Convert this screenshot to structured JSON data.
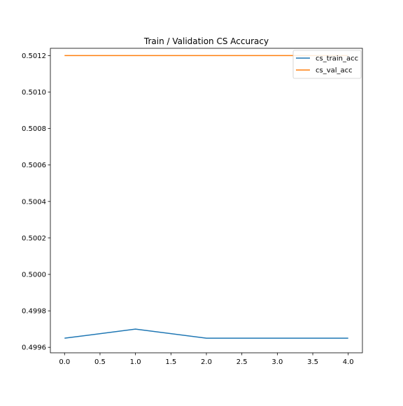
{
  "chart_data": {
    "type": "line",
    "title": "Train / Validation CS Accuracy",
    "xlabel": "",
    "ylabel": "",
    "x": [
      0,
      1,
      2,
      3,
      4
    ],
    "xlim": [
      -0.2,
      4.2
    ],
    "ylim": [
      0.49957,
      0.50124
    ],
    "xticks": [
      "0.0",
      "0.5",
      "1.0",
      "1.5",
      "2.0",
      "2.5",
      "3.0",
      "3.5",
      "4.0"
    ],
    "yticks": [
      "0.4996",
      "0.4998",
      "0.5000",
      "0.5002",
      "0.5004",
      "0.5006",
      "0.5008",
      "0.5010",
      "0.5012"
    ],
    "grid": false,
    "legend_position": "top-right",
    "series": [
      {
        "name": "cs_train_acc",
        "color": "#1f77b4",
        "values": [
          0.49965,
          0.4997,
          0.49965,
          0.49965,
          0.49965
        ]
      },
      {
        "name": "cs_val_acc",
        "color": "#ff7f0e",
        "values": [
          0.5012,
          0.5012,
          0.5012,
          0.5012,
          0.5012
        ]
      }
    ]
  }
}
